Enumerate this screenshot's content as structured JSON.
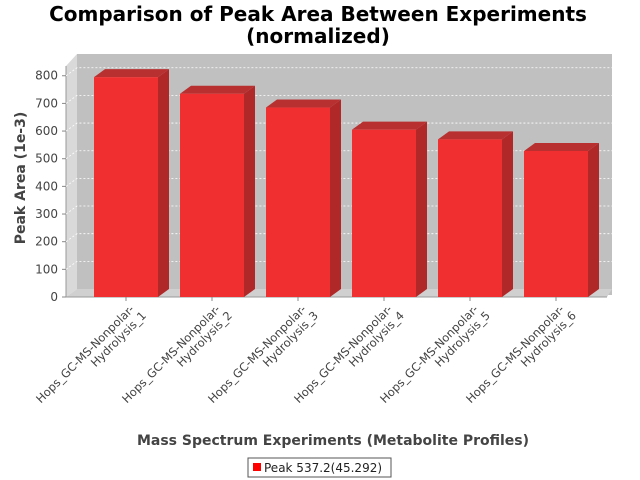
{
  "chart_data": {
    "type": "bar",
    "title_line1": "Comparison of Peak Area Between Experiments",
    "title_line2": "(normalized)",
    "xlabel": "Mass Spectrum Experiments (Metabolite Profiles)",
    "ylabel": "Peak Area (1e-3)",
    "ylim": [
      0,
      850
    ],
    "yticks": [
      0,
      100,
      200,
      300,
      400,
      500,
      600,
      700,
      800
    ],
    "grid": true,
    "legend_position": "bottom",
    "categories": [
      [
        "Hops_GC-MS-Nonpolar-",
        "Hydrolysis_1"
      ],
      [
        "Hops_GC-MS-Nonpolar-",
        "Hydrolysis_2"
      ],
      [
        "Hops_GC-MS-Nonpolar-",
        "Hydrolysis_3"
      ],
      [
        "Hops_GC-MS-Nonpolar-",
        "Hydrolysis_4"
      ],
      [
        "Hops_GC-MS-Nonpolar-",
        "Hydrolysis_5"
      ],
      [
        "Hops_GC-MS-Nonpolar-",
        "Hydrolysis_6"
      ]
    ],
    "series": [
      {
        "name": "Peak 537.2(45.292)",
        "color": "#f03030",
        "values": [
          795,
          735,
          685,
          605,
          570,
          528
        ]
      }
    ]
  }
}
